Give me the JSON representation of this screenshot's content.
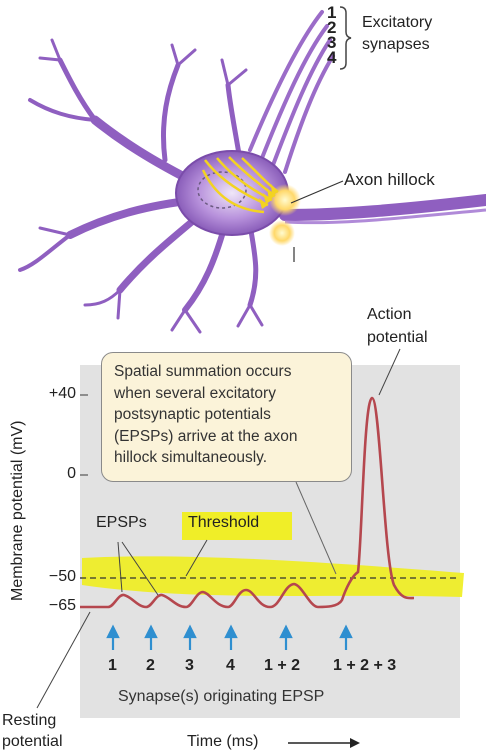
{
  "neuron": {
    "synapse_numbers": [
      "1",
      "2",
      "3",
      "4"
    ],
    "synapse_label_line1": "Excitatory",
    "synapse_label_line2": "synapses",
    "axon_hillock_label": "Axon hillock"
  },
  "graph": {
    "action_potential_line1": "Action",
    "action_potential_line2": "potential",
    "callout_lines": [
      "Spatial summation occurs",
      "when several excitatory",
      "postsynaptic potentials",
      "(EPSPs) arrive at the axon",
      "hillock simultaneously."
    ],
    "epsps_label": "EPSPs",
    "threshold_label": "Threshold",
    "y_axis_label": "Membrane potential (mV)",
    "y_ticks": [
      "+40",
      "0",
      "−50",
      "−65"
    ],
    "synapse_events": [
      "1",
      "2",
      "3",
      "4",
      "1 + 2",
      "1 + 2 + 3"
    ],
    "x_caption": "Synapse(s) originating EPSP",
    "resting_line1": "Resting",
    "resting_line2": "potential",
    "x_axis_label": "Time (ms)"
  },
  "colors": {
    "neuron": "#9b6cc8",
    "trace": "#b5474e",
    "highlight": "#f0ee1e",
    "event_arrow": "#2f8fd0",
    "panel": "#e2e2e2"
  }
}
